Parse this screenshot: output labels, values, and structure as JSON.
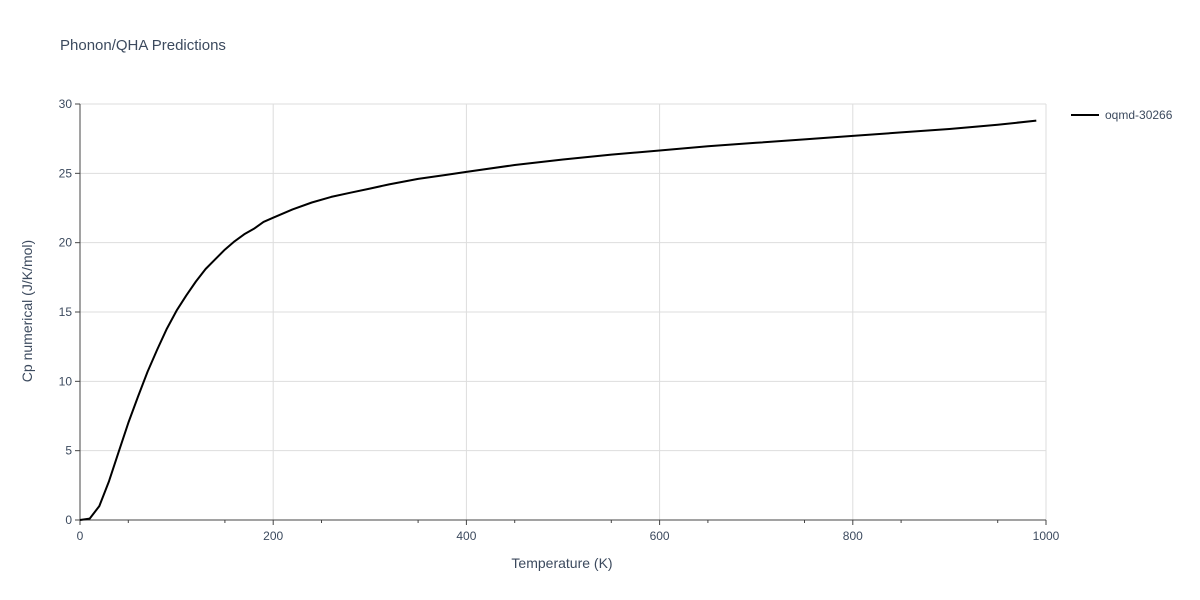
{
  "chart_data": {
    "type": "line",
    "title": "Phonon/QHA Predictions",
    "xlabel": "Temperature (K)",
    "ylabel": "Cp numerical (J/K/mol)",
    "xlim": [
      0,
      1000
    ],
    "ylim": [
      0,
      30
    ],
    "x_ticks": [
      0,
      200,
      400,
      600,
      800,
      1000
    ],
    "y_ticks": [
      0,
      5,
      10,
      15,
      20,
      25,
      30
    ],
    "grid": true,
    "legend_position": "top-right",
    "series": [
      {
        "name": "oqmd-30266",
        "color": "#000000",
        "x": [
          0,
          10,
          20,
          30,
          40,
          50,
          60,
          70,
          80,
          90,
          100,
          110,
          120,
          130,
          140,
          150,
          160,
          170,
          180,
          190,
          200,
          220,
          240,
          260,
          280,
          300,
          320,
          350,
          380,
          400,
          450,
          500,
          550,
          600,
          650,
          700,
          750,
          800,
          850,
          900,
          950,
          990
        ],
        "y": [
          0,
          0.1,
          1.0,
          2.8,
          4.9,
          7.0,
          8.9,
          10.7,
          12.3,
          13.8,
          15.1,
          16.2,
          17.2,
          18.1,
          18.8,
          19.5,
          20.1,
          20.6,
          21.0,
          21.5,
          21.8,
          22.4,
          22.9,
          23.3,
          23.6,
          23.9,
          24.2,
          24.6,
          24.9,
          25.1,
          25.6,
          26.0,
          26.35,
          26.65,
          26.95,
          27.2,
          27.45,
          27.7,
          27.95,
          28.2,
          28.5,
          28.8
        ]
      }
    ]
  }
}
